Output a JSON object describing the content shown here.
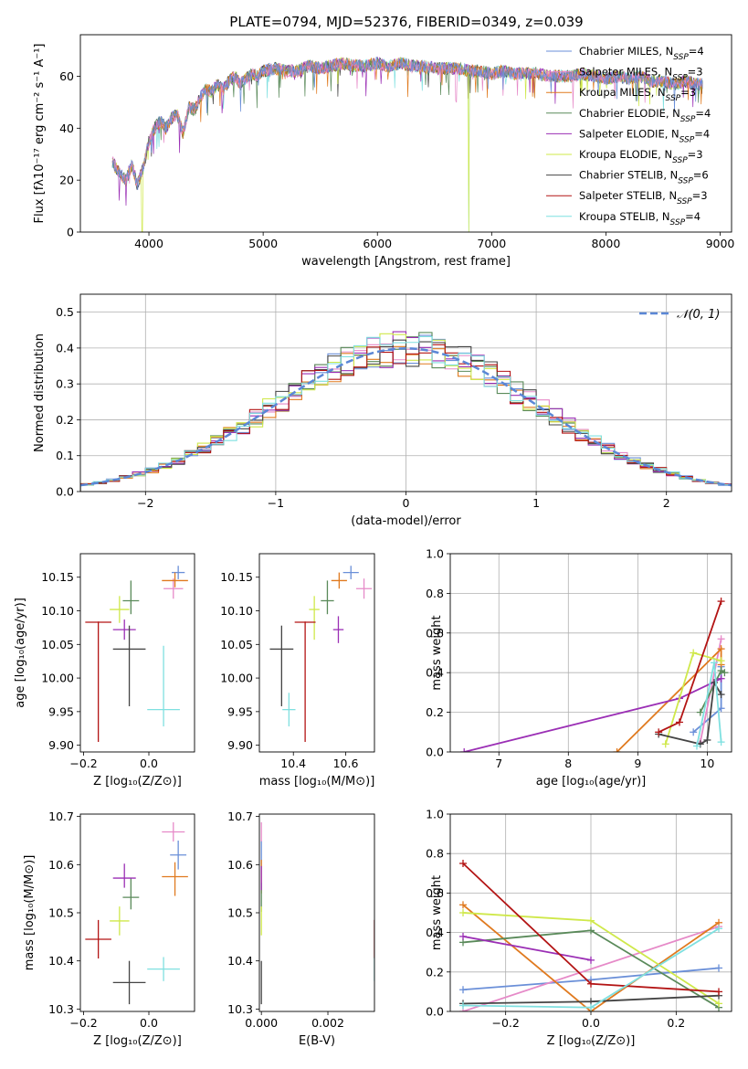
{
  "title": "PLATE=0794, MJD=52376, FIBERID=0349, z=0.039",
  "colors": {
    "Chabrier MILES": "#6a8fd8",
    "Salpeter MILES": "#e68ac8",
    "Kroupa MILES": "#e07a1f",
    "Chabrier ELODIE": "#5a8a5a",
    "Salpeter ELODIE": "#9b2fb5",
    "Kroupa ELODIE": "#cfe84a",
    "Chabrier STELIB": "#444444",
    "Salpeter STELIB": "#b31414",
    "Kroupa STELIB": "#7fe0e0"
  },
  "chart_data": [
    {
      "id": "spectrum",
      "type": "line",
      "xlabel": "wavelength [Angstrom, rest frame]",
      "ylabel": "Flux [fλ10⁻¹⁷ erg cm⁻² s⁻¹ A⁻¹]",
      "xlim": [
        3400,
        9100
      ],
      "ylim": [
        0,
        76
      ],
      "xticks": [
        4000,
        5000,
        6000,
        7000,
        8000,
        9000
      ],
      "yticks": [
        0,
        20,
        40,
        60
      ],
      "x": [
        3680,
        3750,
        3800,
        3850,
        3900,
        3950,
        4000,
        4050,
        4100,
        4150,
        4200,
        4250,
        4300,
        4350,
        4400,
        4450,
        4500,
        4550,
        4600,
        4650,
        4700,
        4750,
        4800,
        4850,
        4900,
        4950,
        5000,
        5100,
        5200,
        5300,
        5400,
        5500,
        5600,
        5700,
        5800,
        5900,
        6000,
        6100,
        6200,
        6300,
        6400,
        6500,
        6600,
        6700,
        6800,
        6900,
        7000,
        7100,
        7200,
        7300,
        7400,
        7500,
        7600,
        7700,
        7800,
        7900,
        8000,
        8100,
        8200,
        8300,
        8400,
        8500,
        8600,
        8700,
        8800,
        8850
      ],
      "y": [
        27,
        22,
        20,
        26,
        18,
        25,
        35,
        40,
        43,
        40,
        44,
        45,
        38,
        48,
        47,
        52,
        55,
        54,
        57,
        55,
        58,
        60,
        57,
        59,
        61,
        60,
        62,
        63,
        62,
        62,
        64,
        63,
        64,
        65,
        64,
        64,
        65,
        64,
        65,
        64,
        64,
        63,
        63,
        63,
        62,
        62,
        61,
        62,
        61,
        61,
        61,
        60,
        60,
        60,
        61,
        60,
        59,
        60,
        59,
        60,
        58,
        58,
        57,
        58,
        57,
        57
      ],
      "series": [
        {
          "name": "Chabrier MILES, N_SSP=4"
        },
        {
          "name": "Salpeter MILES, N_SSP=3"
        },
        {
          "name": "Kroupa MILES, N_SSP=3"
        },
        {
          "name": "Chabrier ELODIE, N_SSP=4"
        },
        {
          "name": "Salpeter ELODIE, N_SSP=4"
        },
        {
          "name": "Kroupa ELODIE, N_SSP=3"
        },
        {
          "name": "Chabrier STELIB, N_SSP=6"
        },
        {
          "name": "Salpeter STELIB, N_SSP=3"
        },
        {
          "name": "Kroupa STELIB, N_SSP=4"
        }
      ],
      "legend": "top-right"
    },
    {
      "id": "residuals",
      "type": "line",
      "xlabel": "(data-model)/error",
      "ylabel": "Normed distribution",
      "xlim": [
        -2.5,
        2.5
      ],
      "ylim": [
        0,
        0.55
      ],
      "xticks": [
        -2,
        -1,
        0,
        1,
        2
      ],
      "yticks": [
        0.0,
        0.1,
        0.2,
        0.3,
        0.4,
        0.5
      ],
      "reference_curve": "𝒩(0, 1)",
      "bin_width": 0.1,
      "grid": true,
      "legend": "top-right"
    },
    {
      "id": "age-vs-Z",
      "type": "scatter",
      "xlabel": "Z [log₁₀(Z/Z⊙)]",
      "ylabel": "age  [log₁₀(age/yr)]",
      "xlim": [
        -0.21,
        0.14
      ],
      "ylim": [
        9.89,
        10.185
      ],
      "xticks": [
        -0.2,
        0.0
      ],
      "yticks": [
        9.9,
        9.95,
        10.0,
        10.05,
        10.1,
        10.15
      ],
      "points": [
        {
          "series": "Chabrier MILES",
          "x": 0.09,
          "y": 10.157,
          "xerr": 0.02,
          "yerr_lo": 0.01,
          "yerr_hi": 0.01
        },
        {
          "series": "Salpeter MILES",
          "x": 0.075,
          "y": 10.133,
          "xerr": 0.03,
          "yerr_lo": 0.015,
          "yerr_hi": 0.015
        },
        {
          "series": "Kroupa MILES",
          "x": 0.08,
          "y": 10.145,
          "xerr": 0.04,
          "yerr_lo": 0.01,
          "yerr_hi": 0.012
        },
        {
          "series": "Chabrier ELODIE",
          "x": -0.055,
          "y": 10.115,
          "xerr": 0.025,
          "yerr_lo": 0.02,
          "yerr_hi": 0.03
        },
        {
          "series": "Salpeter ELODIE",
          "x": -0.075,
          "y": 10.072,
          "xerr": 0.035,
          "yerr_lo": 0.015,
          "yerr_hi": 0.015
        },
        {
          "series": "Kroupa ELODIE",
          "x": -0.09,
          "y": 10.102,
          "xerr": 0.03,
          "yerr_lo": 0.02,
          "yerr_hi": 0.02
        },
        {
          "series": "Chabrier STELIB",
          "x": -0.06,
          "y": 10.043,
          "xerr": 0.05,
          "yerr_lo": 0.085,
          "yerr_hi": 0.035
        },
        {
          "series": "Salpeter STELIB",
          "x": -0.155,
          "y": 10.083,
          "xerr": 0.04,
          "yerr_lo": 0.178,
          "yerr_hi": 0.001
        },
        {
          "series": "Kroupa STELIB",
          "x": 0.045,
          "y": 9.953,
          "xerr": 0.05,
          "yerr_lo": 0.025,
          "yerr_hi": 0.095
        }
      ]
    },
    {
      "id": "age-vs-mass",
      "type": "scatter",
      "xlabel": "mass [log₁₀(M/M⊙)]",
      "ylabel": "",
      "xlim": [
        10.27,
        10.71
      ],
      "ylim": [
        9.89,
        10.185
      ],
      "xticks": [
        10.4,
        10.6
      ],
      "yticks": [
        9.9,
        9.95,
        10.0,
        10.05,
        10.1,
        10.15
      ],
      "points": [
        {
          "series": "Chabrier MILES",
          "x": 10.62,
          "y": 10.157,
          "xerr": 0.03,
          "yerr_lo": 0.01,
          "yerr_hi": 0.01
        },
        {
          "series": "Salpeter MILES",
          "x": 10.67,
          "y": 10.133,
          "xerr": 0.03,
          "yerr_lo": 0.015,
          "yerr_hi": 0.015
        },
        {
          "series": "Kroupa MILES",
          "x": 10.575,
          "y": 10.145,
          "xerr": 0.03,
          "yerr_lo": 0.012,
          "yerr_hi": 0.012
        },
        {
          "series": "Chabrier ELODIE",
          "x": 10.53,
          "y": 10.115,
          "xerr": 0.025,
          "yerr_lo": 0.02,
          "yerr_hi": 0.03
        },
        {
          "series": "Salpeter ELODIE",
          "x": 10.572,
          "y": 10.072,
          "xerr": 0.02,
          "yerr_lo": 0.02,
          "yerr_hi": 0.02
        },
        {
          "series": "Kroupa ELODIE",
          "x": 10.48,
          "y": 10.102,
          "xerr": 0.02,
          "yerr_lo": 0.045,
          "yerr_hi": 0.02
        },
        {
          "series": "Chabrier STELIB",
          "x": 10.355,
          "y": 10.043,
          "xerr": 0.045,
          "yerr_lo": 0.085,
          "yerr_hi": 0.035
        },
        {
          "series": "Salpeter STELIB",
          "x": 10.445,
          "y": 10.083,
          "xerr": 0.04,
          "yerr_lo": 0.178,
          "yerr_hi": 0.001
        },
        {
          "series": "Kroupa STELIB",
          "x": 10.383,
          "y": 9.953,
          "xerr": 0.025,
          "yerr_lo": 0.025,
          "yerr_hi": 0.025
        }
      ]
    },
    {
      "id": "mass-weight-vs-age",
      "type": "line",
      "xlabel": "age  [log₁₀(age/yr)]",
      "ylabel": "mass weight",
      "xlim": [
        6.3,
        10.35
      ],
      "ylim": [
        0,
        1.0
      ],
      "xticks": [
        7,
        8,
        9,
        10
      ],
      "yticks": [
        0.0,
        0.2,
        0.4,
        0.6,
        0.8,
        1.0
      ],
      "grid": true,
      "series": [
        {
          "key": "Chabrier MILES",
          "x": [
            9.8,
            10.2,
            10.2
          ],
          "y": [
            0.1,
            0.22,
            0.43
          ]
        },
        {
          "key": "Salpeter MILES",
          "x": [
            9.9,
            10.2
          ],
          "y": [
            0.05,
            0.57
          ]
        },
        {
          "key": "Kroupa MILES",
          "x": [
            8.7,
            10.2,
            10.2
          ],
          "y": [
            0.0,
            0.52,
            0.44
          ]
        },
        {
          "key": "Chabrier ELODIE",
          "x": [
            9.9,
            10.2,
            10.25
          ],
          "y": [
            0.2,
            0.41,
            0.4
          ]
        },
        {
          "key": "Salpeter ELODIE",
          "x": [
            6.5,
            9.6,
            10.2
          ],
          "y": [
            0.0,
            0.27,
            0.37
          ]
        },
        {
          "key": "Kroupa ELODIE",
          "x": [
            9.4,
            9.8,
            10.2
          ],
          "y": [
            0.04,
            0.5,
            0.46
          ]
        },
        {
          "key": "Chabrier STELIB",
          "x": [
            9.3,
            9.9,
            10.0,
            10.1,
            10.2
          ],
          "y": [
            0.09,
            0.04,
            0.06,
            0.35,
            0.29
          ]
        },
        {
          "key": "Salpeter STELIB",
          "x": [
            9.3,
            9.6,
            10.2
          ],
          "y": [
            0.1,
            0.15,
            0.76
          ]
        },
        {
          "key": "Kroupa STELIB",
          "x": [
            9.85,
            10.1,
            10.2
          ],
          "y": [
            0.03,
            0.45,
            0.05
          ]
        }
      ]
    },
    {
      "id": "mass-vs-Z",
      "type": "scatter",
      "xlabel": "Z [log₁₀(Z/Z⊙)]",
      "ylabel": "mass [log₁₀(M/M⊙)]",
      "xlim": [
        -0.21,
        0.14
      ],
      "ylim": [
        10.295,
        10.705
      ],
      "xticks": [
        -0.2,
        0.0
      ],
      "yticks": [
        10.3,
        10.4,
        10.5,
        10.6,
        10.7
      ],
      "points": [
        {
          "series": "Chabrier MILES",
          "x": 0.09,
          "y": 10.62,
          "xerr": 0.025,
          "yerr_lo": 0.03,
          "yerr_hi": 0.03
        },
        {
          "series": "Salpeter MILES",
          "x": 0.075,
          "y": 10.668,
          "xerr": 0.035,
          "yerr_lo": 0.02,
          "yerr_hi": 0.02
        },
        {
          "series": "Kroupa MILES",
          "x": 0.08,
          "y": 10.575,
          "xerr": 0.04,
          "yerr_lo": 0.04,
          "yerr_hi": 0.03
        },
        {
          "series": "Chabrier ELODIE",
          "x": -0.055,
          "y": 10.532,
          "xerr": 0.025,
          "yerr_lo": 0.025,
          "yerr_hi": 0.04
        },
        {
          "series": "Salpeter ELODIE",
          "x": -0.075,
          "y": 10.572,
          "xerr": 0.035,
          "yerr_lo": 0.02,
          "yerr_hi": 0.03
        },
        {
          "series": "Kroupa ELODIE",
          "x": -0.09,
          "y": 10.483,
          "xerr": 0.03,
          "yerr_lo": 0.03,
          "yerr_hi": 0.03
        },
        {
          "series": "Chabrier STELIB",
          "x": -0.06,
          "y": 10.355,
          "xerr": 0.05,
          "yerr_lo": 0.045,
          "yerr_hi": 0.045
        },
        {
          "series": "Salpeter STELIB",
          "x": -0.155,
          "y": 10.445,
          "xerr": 0.04,
          "yerr_lo": 0.04,
          "yerr_hi": 0.04
        },
        {
          "series": "Kroupa STELIB",
          "x": 0.045,
          "y": 10.383,
          "xerr": 0.05,
          "yerr_lo": 0.025,
          "yerr_hi": 0.025
        }
      ]
    },
    {
      "id": "mass-vs-ebv",
      "type": "scatter",
      "xlabel": "E(B-V)",
      "ylabel": "",
      "xlim": [
        -6e-05,
        0.0034
      ],
      "ylim": [
        10.295,
        10.705
      ],
      "xticks": [
        0.0,
        0.002
      ],
      "xtick_labels": [
        "0.000",
        "0.002"
      ],
      "yticks": [
        10.3,
        10.4,
        10.5,
        10.6,
        10.7
      ],
      "points": [
        {
          "series": "Chabrier MILES",
          "x": 0.0,
          "y": 10.62,
          "yerr": 0.03
        },
        {
          "series": "Salpeter MILES",
          "x": 0.0,
          "y": 10.668,
          "yerr": 0.02
        },
        {
          "series": "Kroupa MILES",
          "x": 0.0,
          "y": 10.575,
          "yerr": 0.035
        },
        {
          "series": "Chabrier ELODIE",
          "x": 0.0,
          "y": 10.532,
          "yerr": 0.03
        },
        {
          "series": "Salpeter ELODIE",
          "x": 0.0,
          "y": 10.572,
          "yerr": 0.025
        },
        {
          "series": "Kroupa ELODIE",
          "x": 0.0,
          "y": 10.483,
          "yerr": 0.03
        },
        {
          "series": "Chabrier STELIB",
          "x": 0.0,
          "y": 10.355,
          "yerr": 0.045
        },
        {
          "series": "Salpeter STELIB",
          "x": 0.0034,
          "y": 10.445,
          "yerr": 0.04
        },
        {
          "series": "Kroupa STELIB",
          "x": 0.0034,
          "y": 10.383,
          "yerr": 0.025
        }
      ]
    },
    {
      "id": "mass-weight-vs-Z",
      "type": "line",
      "xlabel": "Z [log₁₀(Z/Z⊙)]",
      "ylabel": "mass weight",
      "xlim": [
        -0.33,
        0.33
      ],
      "ylim": [
        0,
        1.0
      ],
      "xticks": [
        -0.2,
        0.0,
        0.2
      ],
      "yticks": [
        0.0,
        0.2,
        0.4,
        0.6,
        0.8,
        1.0
      ],
      "grid": true,
      "series": [
        {
          "key": "Chabrier MILES",
          "x": [
            -0.3,
            0.0,
            0.3
          ],
          "y": [
            0.11,
            0.16,
            0.22
          ]
        },
        {
          "key": "Salpeter MILES",
          "x": [
            -0.3,
            0.3
          ],
          "y": [
            0.0,
            0.43
          ]
        },
        {
          "key": "Kroupa MILES",
          "x": [
            -0.3,
            0.0,
            0.3
          ],
          "y": [
            0.54,
            0.0,
            0.45
          ]
        },
        {
          "key": "Chabrier ELODIE",
          "x": [
            -0.3,
            0.0,
            0.3
          ],
          "y": [
            0.35,
            0.41,
            0.02
          ]
        },
        {
          "key": "Salpeter ELODIE",
          "x": [
            -0.3,
            0.0
          ],
          "y": [
            0.38,
            0.26
          ]
        },
        {
          "key": "Kroupa ELODIE",
          "x": [
            -0.3,
            0.0,
            0.3
          ],
          "y": [
            0.5,
            0.46,
            0.04
          ]
        },
        {
          "key": "Chabrier STELIB",
          "x": [
            -0.3,
            0.0,
            0.3
          ],
          "y": [
            0.04,
            0.05,
            0.08
          ]
        },
        {
          "key": "Salpeter STELIB",
          "x": [
            -0.3,
            0.0,
            0.3
          ],
          "y": [
            0.75,
            0.14,
            0.1
          ]
        },
        {
          "key": "Kroupa STELIB",
          "x": [
            -0.3,
            0.0,
            0.3
          ],
          "y": [
            0.03,
            0.02,
            0.42
          ]
        }
      ]
    }
  ]
}
